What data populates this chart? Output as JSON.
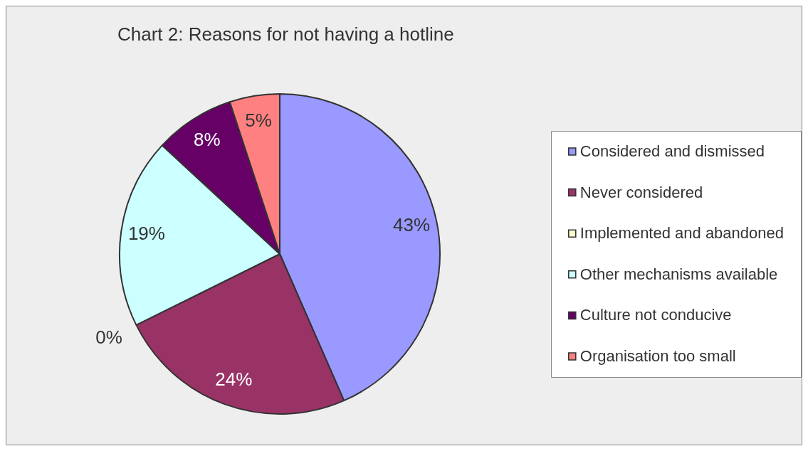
{
  "chart_data": {
    "type": "pie",
    "title": "Chart 2: Reasons for not having a hotline",
    "categories": [
      "Considered and dismissed",
      "Never considered",
      "Implemented and abandoned",
      "Other mechanisms available",
      "Culture not conducive",
      "Organisation too small"
    ],
    "values": [
      43,
      24,
      0,
      19,
      8,
      5
    ],
    "colors": [
      "#9999ff",
      "#993366",
      "#ffffcc",
      "#ccffff",
      "#660066",
      "#ff8080"
    ],
    "value_labels": [
      "43%",
      "24%",
      "0%",
      "19%",
      "8%",
      "5%"
    ],
    "legend": "right"
  }
}
